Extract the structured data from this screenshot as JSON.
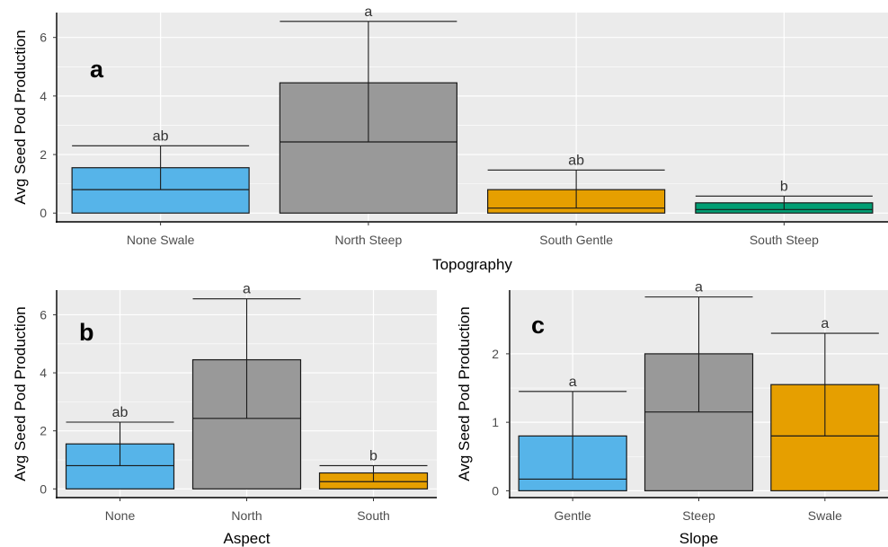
{
  "chart_data": [
    {
      "type": "bar",
      "panel_label": "a",
      "xlabel": "Topography",
      "ylabel": "Avg Seed Pod Production",
      "ylim": [
        -0.3,
        6.85
      ],
      "yticks": [
        0,
        2,
        4,
        6
      ],
      "grid": true,
      "categories": [
        "None Swale",
        "North Steep",
        "South Gentle",
        "South Steep"
      ],
      "values": [
        1.55,
        4.45,
        0.8,
        0.35
      ],
      "medians": [
        0.8,
        2.43,
        0.17,
        0.12
      ],
      "error_upper": [
        2.3,
        6.55,
        1.47,
        0.58
      ],
      "significance_labels": [
        "ab",
        "a",
        "ab",
        "b"
      ],
      "colors": [
        "#56B4E9",
        "#999999",
        "#E69F00",
        "#009E73"
      ]
    },
    {
      "type": "bar",
      "panel_label": "b",
      "xlabel": "Aspect",
      "ylabel": "Avg Seed Pod Production",
      "ylim": [
        -0.3,
        6.85
      ],
      "yticks": [
        0,
        2,
        4,
        6
      ],
      "grid": true,
      "categories": [
        "None",
        "North",
        "South"
      ],
      "values": [
        1.55,
        4.45,
        0.55
      ],
      "medians": [
        0.8,
        2.43,
        0.25
      ],
      "error_upper": [
        2.3,
        6.55,
        0.8
      ],
      "significance_labels": [
        "ab",
        "a",
        "b"
      ],
      "colors": [
        "#56B4E9",
        "#999999",
        "#E69F00"
      ]
    },
    {
      "type": "bar",
      "panel_label": "c",
      "xlabel": "Slope",
      "ylabel": "Avg Seed Pod Production",
      "ylim": [
        -0.1,
        2.93
      ],
      "yticks": [
        0,
        1,
        2
      ],
      "grid": true,
      "categories": [
        "Gentle",
        "Steep",
        "Swale"
      ],
      "values": [
        0.8,
        2.0,
        1.55
      ],
      "medians": [
        0.17,
        1.15,
        0.8
      ],
      "error_upper": [
        1.45,
        2.83,
        2.3
      ],
      "significance_labels": [
        "a",
        "a",
        "a"
      ],
      "colors": [
        "#56B4E9",
        "#999999",
        "#E69F00"
      ]
    }
  ]
}
